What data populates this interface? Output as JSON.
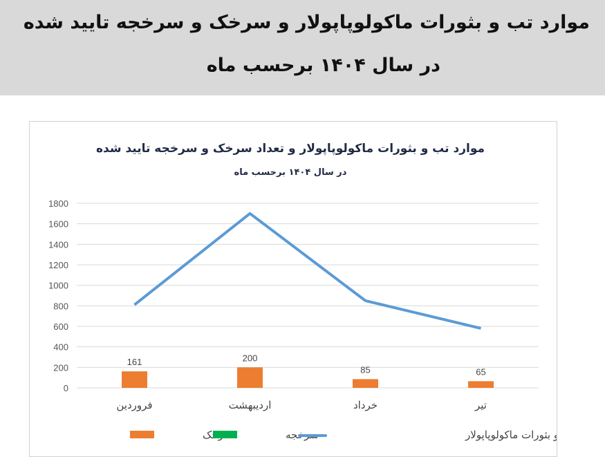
{
  "header": {
    "title_line1": "موارد تب و بثورات ماکولوپاپولار و سرخک و سرخجه تایید شده",
    "title_line2": "در سال  ۱۴۰۴  برحسب ماه"
  },
  "chart_data": {
    "type": "bar+line",
    "title": "موارد تب و بثورات ماکولوپاپولار و تعداد سرخک و سرخجه تایید شده",
    "subtitle": "در سال ۱۴۰۴ برحسب ماه",
    "categories": [
      "فروردین",
      "اردیبهشت",
      "خرداد",
      "تیر"
    ],
    "ylim": [
      0,
      1800
    ],
    "yticks": [
      0,
      200,
      400,
      600,
      800,
      1000,
      1200,
      1400,
      1600,
      1800
    ],
    "grid": true,
    "legend_position": "bottom",
    "series": [
      {
        "name": "سرخک",
        "type": "bar",
        "color": "#ed7d31",
        "values": [
          161,
          200,
          85,
          65
        ],
        "data_labels": true
      },
      {
        "name": "سرخجه",
        "type": "bar",
        "color": "#00b050",
        "values": [
          0,
          0,
          0,
          0
        ],
        "data_labels": false
      },
      {
        "name": "تب و بثورات ماکولوپاپولار",
        "type": "line",
        "color": "#5b9bd5",
        "values": [
          810,
          1700,
          850,
          580
        ],
        "data_labels": false
      }
    ]
  }
}
